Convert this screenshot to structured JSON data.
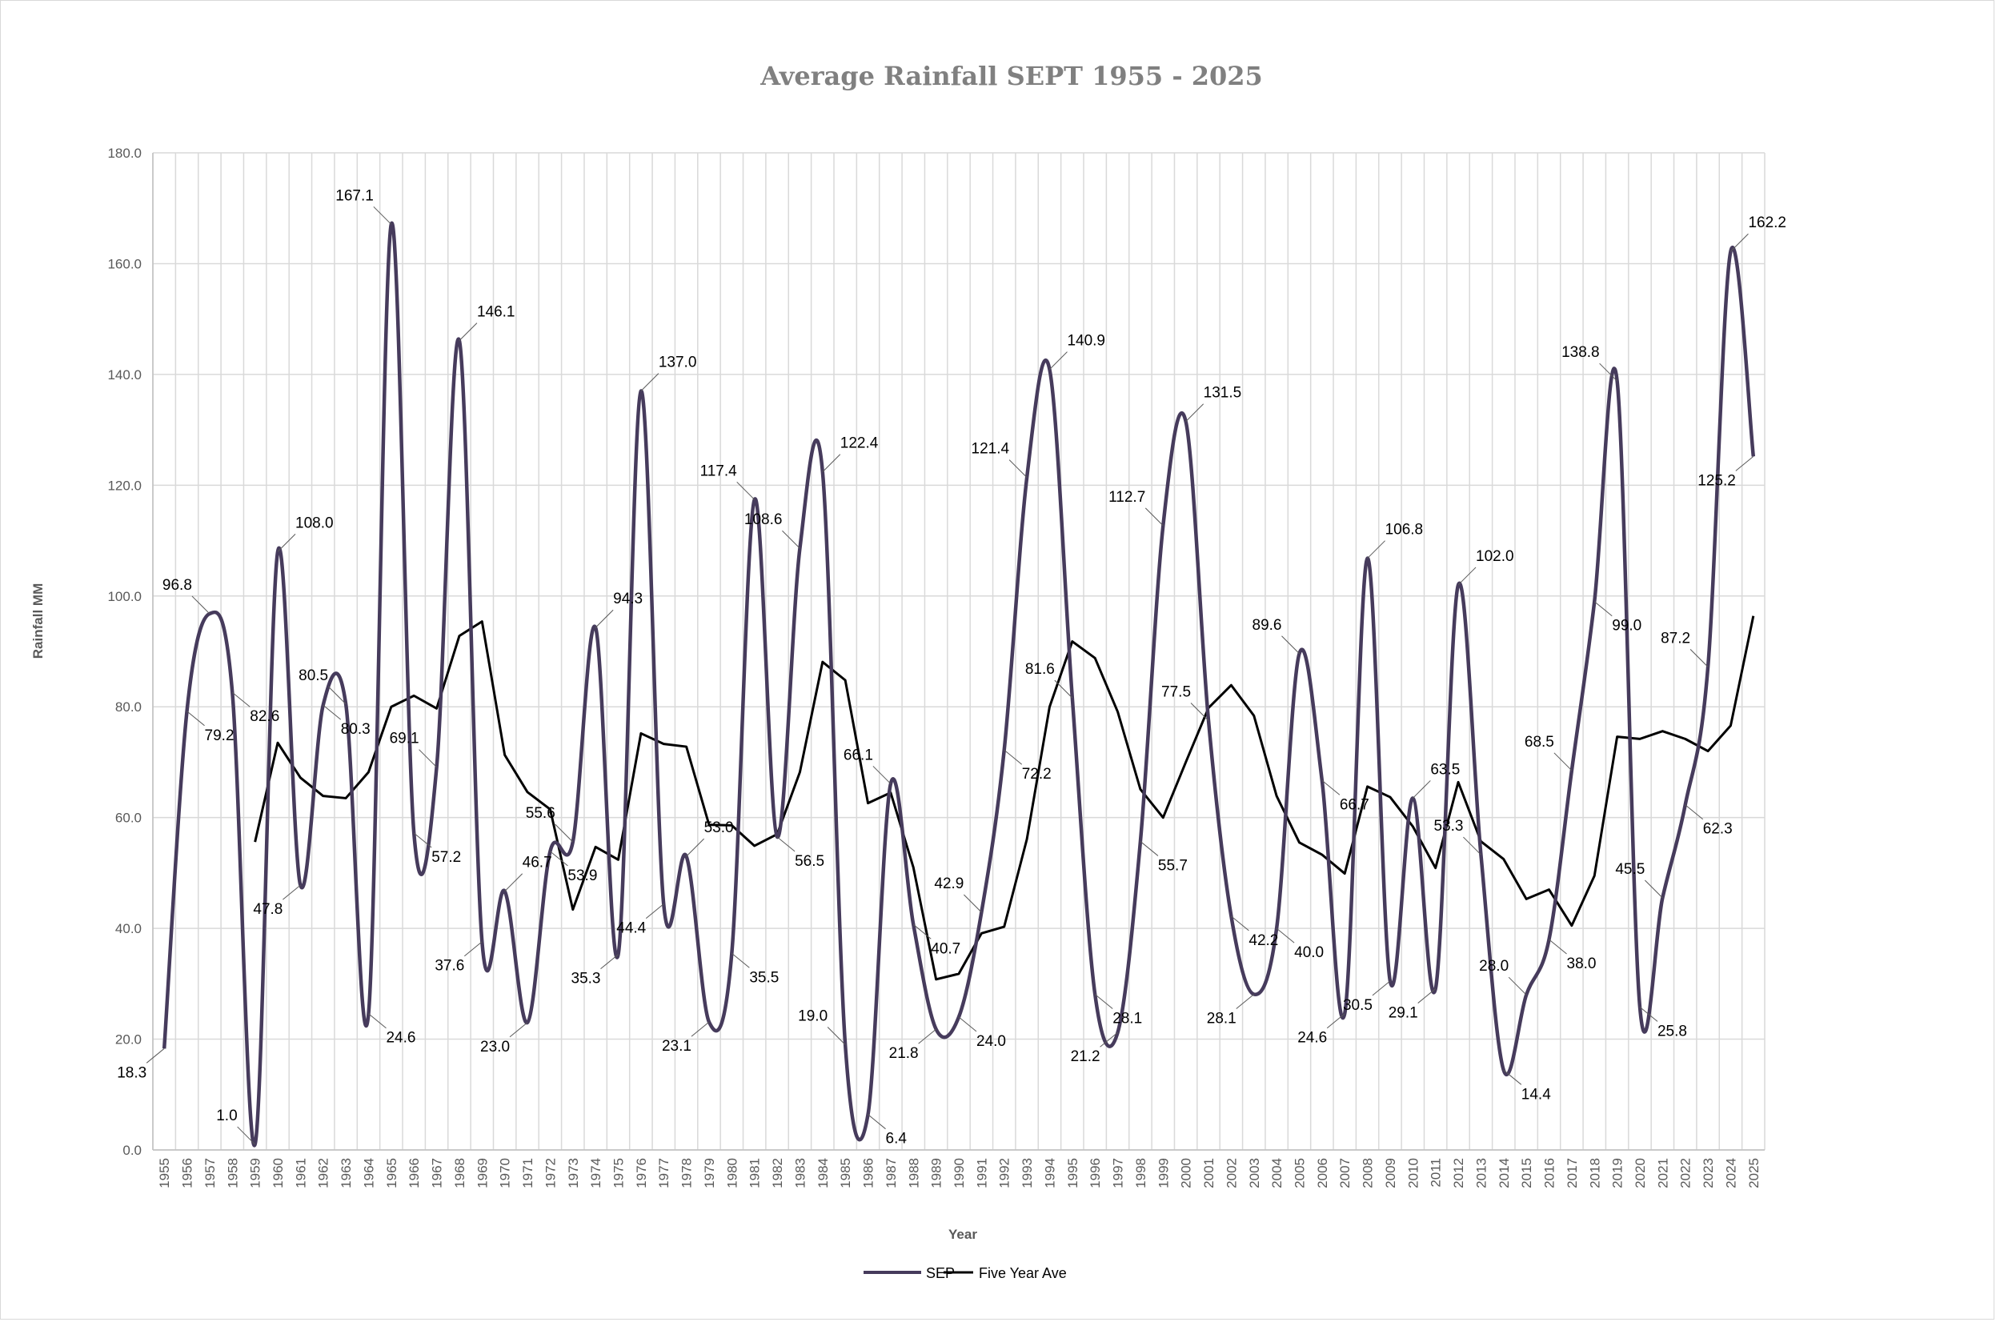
{
  "colors": {
    "sep": "#463b5c",
    "avg": "#000000",
    "grid": "#d9d9d9",
    "frame": "#d9d9d9"
  },
  "chart_data": {
    "type": "line",
    "title": "Average Rainfall SEPT 1955 - 2025",
    "xlabel": "Year",
    "ylabel": "Rainfall MM",
    "ylim": [
      0,
      180
    ],
    "ytick_step": 20,
    "ytick_labels": [
      "0.0",
      "20.0",
      "40.0",
      "60.0",
      "80.0",
      "100.0",
      "120.0",
      "140.0",
      "160.0",
      "180.0"
    ],
    "grid": true,
    "legend_position": "bottom",
    "categories": [
      "1955",
      "1956",
      "1957",
      "1958",
      "1959",
      "1960",
      "1961",
      "1962",
      "1963",
      "1964",
      "1965",
      "1966",
      "1967",
      "1968",
      "1969",
      "1970",
      "1971",
      "1972",
      "1973",
      "1974",
      "1975",
      "1976",
      "1977",
      "1978",
      "1979",
      "1980",
      "1981",
      "1982",
      "1983",
      "1984",
      "1985",
      "1986",
      "1987",
      "1988",
      "1989",
      "1990",
      "1991",
      "1992",
      "1993",
      "1994",
      "1995",
      "1996",
      "1997",
      "1998",
      "1999",
      "2000",
      "2001",
      "2002",
      "2003",
      "2004",
      "2005",
      "2006",
      "2007",
      "2008",
      "2009",
      "2010",
      "2011",
      "2012",
      "2013",
      "2014",
      "2015",
      "2016",
      "2017",
      "2018",
      "2019",
      "2020",
      "2021",
      "2022",
      "2023",
      "2024",
      "2025"
    ],
    "series": [
      {
        "name": "SEP",
        "smooth": true,
        "values": [
          18.3,
          79.2,
          96.8,
          82.6,
          1.0,
          108.0,
          47.8,
          80.3,
          80.5,
          24.6,
          167.1,
          57.2,
          69.1,
          146.1,
          37.6,
          46.7,
          23.0,
          53.9,
          55.6,
          94.3,
          35.3,
          137.0,
          44.4,
          53.0,
          23.1,
          35.5,
          117.4,
          56.5,
          108.6,
          122.4,
          19.0,
          6.4,
          66.1,
          40.7,
          21.8,
          24.0,
          42.9,
          72.2,
          121.4,
          140.9,
          81.6,
          28.1,
          21.2,
          55.7,
          112.7,
          131.5,
          77.5,
          42.2,
          28.1,
          40.0,
          89.6,
          66.7,
          24.6,
          106.8,
          30.5,
          63.5,
          29.1,
          102.0,
          53.3,
          14.4,
          28.0,
          38.0,
          68.5,
          99.0,
          138.8,
          25.8,
          45.5,
          62.3,
          87.2,
          162.2,
          125.2
        ],
        "labels": [
          "18.3",
          "79.2",
          "96.8",
          "82.6",
          "1.0",
          "108.0",
          "47.8",
          "80.3",
          "80.5",
          "24.6",
          "167.1",
          "57.2",
          "69.1",
          "146.1",
          "37.6",
          "46.7",
          "23.0",
          "53.9",
          "55.6",
          "94.3",
          "35.3",
          "137.0",
          "44.4",
          "53.0",
          "23.1",
          "35.5",
          "117.4",
          "56.5",
          "108.6",
          "122.4",
          "19.0",
          "6.4",
          "66.1",
          "40.7",
          "21.8",
          "24.0",
          "42.9",
          "72.2",
          "121.4",
          "140.9",
          "81.6",
          "28.1",
          "21.2",
          "55.7",
          "112.7",
          "131.5",
          "77.5",
          "42.2",
          "28.1",
          "40.0",
          "89.6",
          "66.7",
          "24.6",
          "106.8",
          "30.5",
          "63.5",
          "29.1",
          "102.0",
          "53.3",
          "14.4",
          "28.0",
          "38.0",
          "68.5",
          "99.0",
          "138.8",
          "25.8",
          "45.5",
          "62.3",
          "87.2",
          "162.2",
          "125.2"
        ]
      },
      {
        "name": "Five Year Ave",
        "smooth": false,
        "values": [
          null,
          null,
          null,
          null,
          55.6,
          73.5,
          67.2,
          63.9,
          63.5,
          68.2,
          80.0,
          82.0,
          79.7,
          92.8,
          95.4,
          71.3,
          64.6,
          61.5,
          43.4,
          54.7,
          52.4,
          75.2,
          73.3,
          72.8,
          58.7,
          58.6,
          54.9,
          57.0,
          68.2,
          88.1,
          84.8,
          62.6,
          64.5,
          51.0,
          30.8,
          31.8,
          39.1,
          40.3,
          56.1,
          80.0,
          91.8,
          88.8,
          79.1,
          65.1,
          60.0,
          70.0,
          79.8,
          83.9,
          78.4,
          63.9,
          55.5,
          53.3,
          49.9,
          65.6,
          63.7,
          58.4,
          50.9,
          66.4,
          55.7,
          52.5,
          45.3,
          47.0,
          40.5,
          49.5,
          74.6,
          74.2,
          75.6,
          74.2,
          72.0,
          76.6,
          96.4
        ]
      }
    ]
  }
}
